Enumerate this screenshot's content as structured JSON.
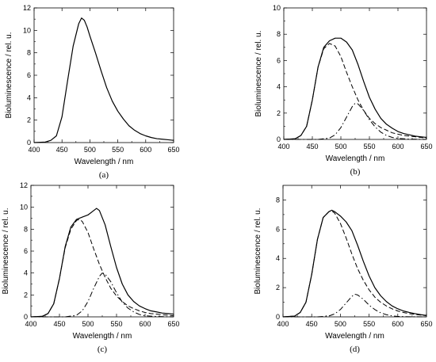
{
  "chart_data": [
    {
      "type": "line",
      "panel_label": "(a)",
      "xlabel": "Wavelength / nm",
      "ylabel": "Bioluminescence / rel. u.",
      "xlim": [
        400,
        650
      ],
      "ylim": [
        0,
        12
      ],
      "xticks": [
        400,
        450,
        500,
        550,
        600,
        650
      ],
      "yticks": [
        0,
        2,
        4,
        6,
        8,
        10,
        12
      ],
      "series": [
        {
          "style": "solid",
          "x": [
            400,
            420,
            430,
            440,
            450,
            460,
            470,
            480,
            485,
            490,
            495,
            500,
            510,
            520,
            530,
            540,
            550,
            560,
            570,
            580,
            590,
            600,
            610,
            620,
            630,
            640,
            650
          ],
          "y": [
            0.0,
            0.05,
            0.2,
            0.6,
            2.3,
            5.5,
            8.6,
            10.6,
            11.1,
            10.9,
            10.3,
            9.5,
            8.0,
            6.4,
            4.9,
            3.7,
            2.8,
            2.1,
            1.5,
            1.1,
            0.8,
            0.6,
            0.45,
            0.35,
            0.3,
            0.25,
            0.2
          ]
        }
      ]
    },
    {
      "type": "line",
      "panel_label": "(b)",
      "xlabel": "Wavelength / nm",
      "ylabel": "Bioluminescence / rel. u.",
      "xlim": [
        400,
        650
      ],
      "ylim": [
        0,
        10
      ],
      "xticks": [
        400,
        450,
        500,
        550,
        600,
        650
      ],
      "yticks": [
        0,
        2,
        4,
        6,
        8,
        10
      ],
      "series": [
        {
          "style": "solid",
          "x": [
            400,
            420,
            430,
            440,
            450,
            460,
            470,
            480,
            490,
            500,
            510,
            520,
            530,
            540,
            550,
            560,
            570,
            580,
            590,
            600,
            610,
            620,
            630,
            640,
            650
          ],
          "y": [
            0.0,
            0.05,
            0.3,
            1.0,
            3.0,
            5.5,
            7.0,
            7.5,
            7.7,
            7.7,
            7.4,
            6.8,
            5.7,
            4.4,
            3.2,
            2.3,
            1.6,
            1.15,
            0.85,
            0.6,
            0.45,
            0.35,
            0.25,
            0.2,
            0.15
          ]
        },
        {
          "style": "dashed",
          "x": [
            400,
            420,
            430,
            440,
            450,
            460,
            470,
            480,
            490,
            500,
            510,
            520,
            530,
            540,
            550,
            560,
            570,
            580,
            590,
            600,
            610,
            620,
            630,
            640,
            650
          ],
          "y": [
            0.0,
            0.05,
            0.3,
            1.0,
            3.0,
            5.5,
            6.9,
            7.3,
            7.1,
            6.3,
            5.1,
            4.0,
            3.0,
            2.2,
            1.6,
            1.2,
            0.9,
            0.7,
            0.5,
            0.4,
            0.3,
            0.25,
            0.2,
            0.15,
            0.1
          ]
        },
        {
          "style": "dash-dot",
          "x": [
            400,
            460,
            480,
            490,
            500,
            510,
            520,
            525,
            530,
            540,
            550,
            560,
            570,
            580,
            590,
            600,
            620,
            650
          ],
          "y": [
            0.0,
            0.0,
            0.1,
            0.35,
            0.9,
            1.7,
            2.5,
            2.75,
            2.7,
            2.2,
            1.5,
            0.95,
            0.55,
            0.3,
            0.15,
            0.08,
            0.02,
            0.0
          ]
        }
      ]
    },
    {
      "type": "line",
      "panel_label": "(c)",
      "xlabel": "Wavelength / nm",
      "ylabel": "Bioluminescence / rel. u.",
      "xlim": [
        400,
        650
      ],
      "ylim": [
        0,
        12
      ],
      "xticks": [
        400,
        450,
        500,
        550,
        600,
        650
      ],
      "yticks": [
        0,
        2,
        4,
        6,
        8,
        10,
        12
      ],
      "series": [
        {
          "style": "solid",
          "x": [
            400,
            420,
            430,
            440,
            450,
            460,
            470,
            480,
            490,
            500,
            510,
            515,
            520,
            530,
            540,
            550,
            560,
            570,
            580,
            590,
            600,
            610,
            620,
            630,
            640,
            650
          ],
          "y": [
            0.0,
            0.05,
            0.3,
            1.2,
            3.5,
            6.4,
            8.2,
            8.9,
            9.1,
            9.3,
            9.7,
            9.9,
            9.7,
            8.4,
            6.4,
            4.5,
            3.0,
            2.0,
            1.4,
            1.0,
            0.75,
            0.55,
            0.45,
            0.35,
            0.3,
            0.25
          ]
        },
        {
          "style": "dashed",
          "x": [
            400,
            420,
            430,
            440,
            450,
            460,
            470,
            480,
            485,
            490,
            500,
            510,
            520,
            530,
            540,
            550,
            560,
            570,
            580,
            590,
            600,
            610,
            620,
            630,
            640,
            650
          ],
          "y": [
            0.0,
            0.05,
            0.3,
            1.2,
            3.5,
            6.3,
            8.0,
            8.8,
            8.9,
            8.7,
            7.7,
            6.2,
            4.8,
            3.6,
            2.6,
            1.9,
            1.4,
            1.0,
            0.75,
            0.55,
            0.4,
            0.3,
            0.25,
            0.2,
            0.15,
            0.1
          ]
        },
        {
          "style": "dash-dot",
          "x": [
            400,
            460,
            480,
            490,
            500,
            510,
            520,
            525,
            530,
            540,
            550,
            560,
            570,
            580,
            590,
            600,
            620,
            650
          ],
          "y": [
            0.0,
            0.0,
            0.15,
            0.55,
            1.4,
            2.6,
            3.7,
            4.0,
            3.9,
            3.2,
            2.2,
            1.35,
            0.8,
            0.45,
            0.22,
            0.1,
            0.03,
            0.0
          ]
        }
      ]
    },
    {
      "type": "line",
      "panel_label": "(d)",
      "xlabel": "Wavelength / nm",
      "ylabel": "Bioluminescence / rel. u.",
      "xlim": [
        400,
        650
      ],
      "ylim": [
        0,
        9
      ],
      "xticks": [
        400,
        450,
        500,
        550,
        600,
        650
      ],
      "yticks": [
        0,
        2,
        4,
        6,
        8
      ],
      "series": [
        {
          "style": "solid",
          "x": [
            400,
            420,
            430,
            440,
            450,
            460,
            470,
            480,
            485,
            490,
            500,
            510,
            520,
            530,
            540,
            550,
            560,
            570,
            580,
            590,
            600,
            610,
            620,
            630,
            640,
            650
          ],
          "y": [
            0.0,
            0.05,
            0.3,
            1.0,
            2.9,
            5.3,
            6.8,
            7.2,
            7.3,
            7.2,
            6.9,
            6.5,
            5.9,
            4.9,
            3.8,
            2.8,
            2.0,
            1.45,
            1.05,
            0.75,
            0.55,
            0.4,
            0.3,
            0.22,
            0.15,
            0.1
          ]
        },
        {
          "style": "dashed",
          "x": [
            400,
            420,
            430,
            440,
            450,
            460,
            470,
            480,
            485,
            490,
            500,
            510,
            520,
            530,
            540,
            550,
            560,
            570,
            580,
            590,
            600,
            610,
            620,
            630,
            640,
            650
          ],
          "y": [
            0.0,
            0.05,
            0.3,
            1.0,
            2.9,
            5.3,
            6.8,
            7.2,
            7.25,
            7.1,
            6.4,
            5.4,
            4.3,
            3.3,
            2.5,
            1.85,
            1.35,
            1.0,
            0.75,
            0.55,
            0.4,
            0.3,
            0.22,
            0.17,
            0.12,
            0.08
          ]
        },
        {
          "style": "dash-dot",
          "x": [
            400,
            460,
            480,
            490,
            500,
            510,
            520,
            525,
            530,
            540,
            550,
            560,
            570,
            580,
            590,
            600,
            620,
            650
          ],
          "y": [
            0.0,
            0.0,
            0.06,
            0.2,
            0.5,
            0.95,
            1.4,
            1.55,
            1.5,
            1.2,
            0.8,
            0.5,
            0.28,
            0.15,
            0.07,
            0.03,
            0.01,
            0.0
          ]
        }
      ]
    }
  ]
}
